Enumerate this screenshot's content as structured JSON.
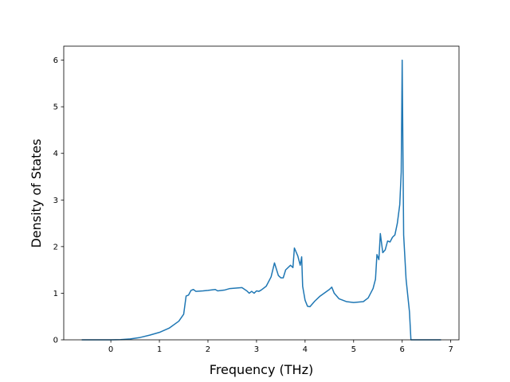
{
  "chart_data": {
    "type": "line",
    "x_label": "Frequency (THz)",
    "y_label": "Density of States",
    "x": [
      -0.6,
      0,
      0.2,
      0.4,
      0.6,
      0.8,
      1.0,
      1.2,
      1.4,
      1.5,
      1.55,
      1.6,
      1.65,
      1.7,
      1.75,
      1.9,
      2.0,
      2.15,
      2.2,
      2.35,
      2.45,
      2.7,
      2.8,
      2.85,
      2.9,
      2.95,
      3.0,
      3.05,
      3.1,
      3.2,
      3.3,
      3.37,
      3.45,
      3.5,
      3.55,
      3.6,
      3.7,
      3.75,
      3.78,
      3.85,
      3.9,
      3.93,
      3.95,
      4.0,
      4.05,
      4.1,
      4.2,
      4.3,
      4.5,
      4.55,
      4.6,
      4.7,
      4.85,
      5.0,
      5.2,
      5.3,
      5.4,
      5.45,
      5.48,
      5.52,
      5.55,
      5.6,
      5.65,
      5.7,
      5.75,
      5.8,
      5.85,
      5.9,
      5.95,
      5.98,
      6.0,
      6.03,
      6.08,
      6.15,
      6.18,
      6.8
    ],
    "series": [
      {
        "name": "DOS",
        "color": "#1f77b4",
        "values": [
          0,
          0,
          0.005,
          0.02,
          0.05,
          0.1,
          0.16,
          0.25,
          0.4,
          0.55,
          0.94,
          0.96,
          1.06,
          1.08,
          1.04,
          1.05,
          1.06,
          1.08,
          1.05,
          1.07,
          1.1,
          1.12,
          1.05,
          1.0,
          1.04,
          1.0,
          1.05,
          1.04,
          1.07,
          1.15,
          1.35,
          1.65,
          1.38,
          1.33,
          1.33,
          1.5,
          1.6,
          1.55,
          1.97,
          1.8,
          1.6,
          1.78,
          1.15,
          0.85,
          0.72,
          0.71,
          0.83,
          0.93,
          1.08,
          1.13,
          1.0,
          0.88,
          0.82,
          0.8,
          0.82,
          0.9,
          1.1,
          1.3,
          1.83,
          1.72,
          2.28,
          1.87,
          1.93,
          2.12,
          2.1,
          2.2,
          2.25,
          2.5,
          2.9,
          3.6,
          6.0,
          2.25,
          1.3,
          0.6,
          0,
          0
        ]
      }
    ],
    "xlim": [
      -0.97,
      7.17
    ],
    "ylim": [
      0,
      6.3
    ],
    "xticks": [
      0,
      1,
      2,
      3,
      4,
      5,
      6,
      7
    ],
    "yticks": [
      0,
      1,
      2,
      3,
      4,
      5,
      6
    ]
  }
}
